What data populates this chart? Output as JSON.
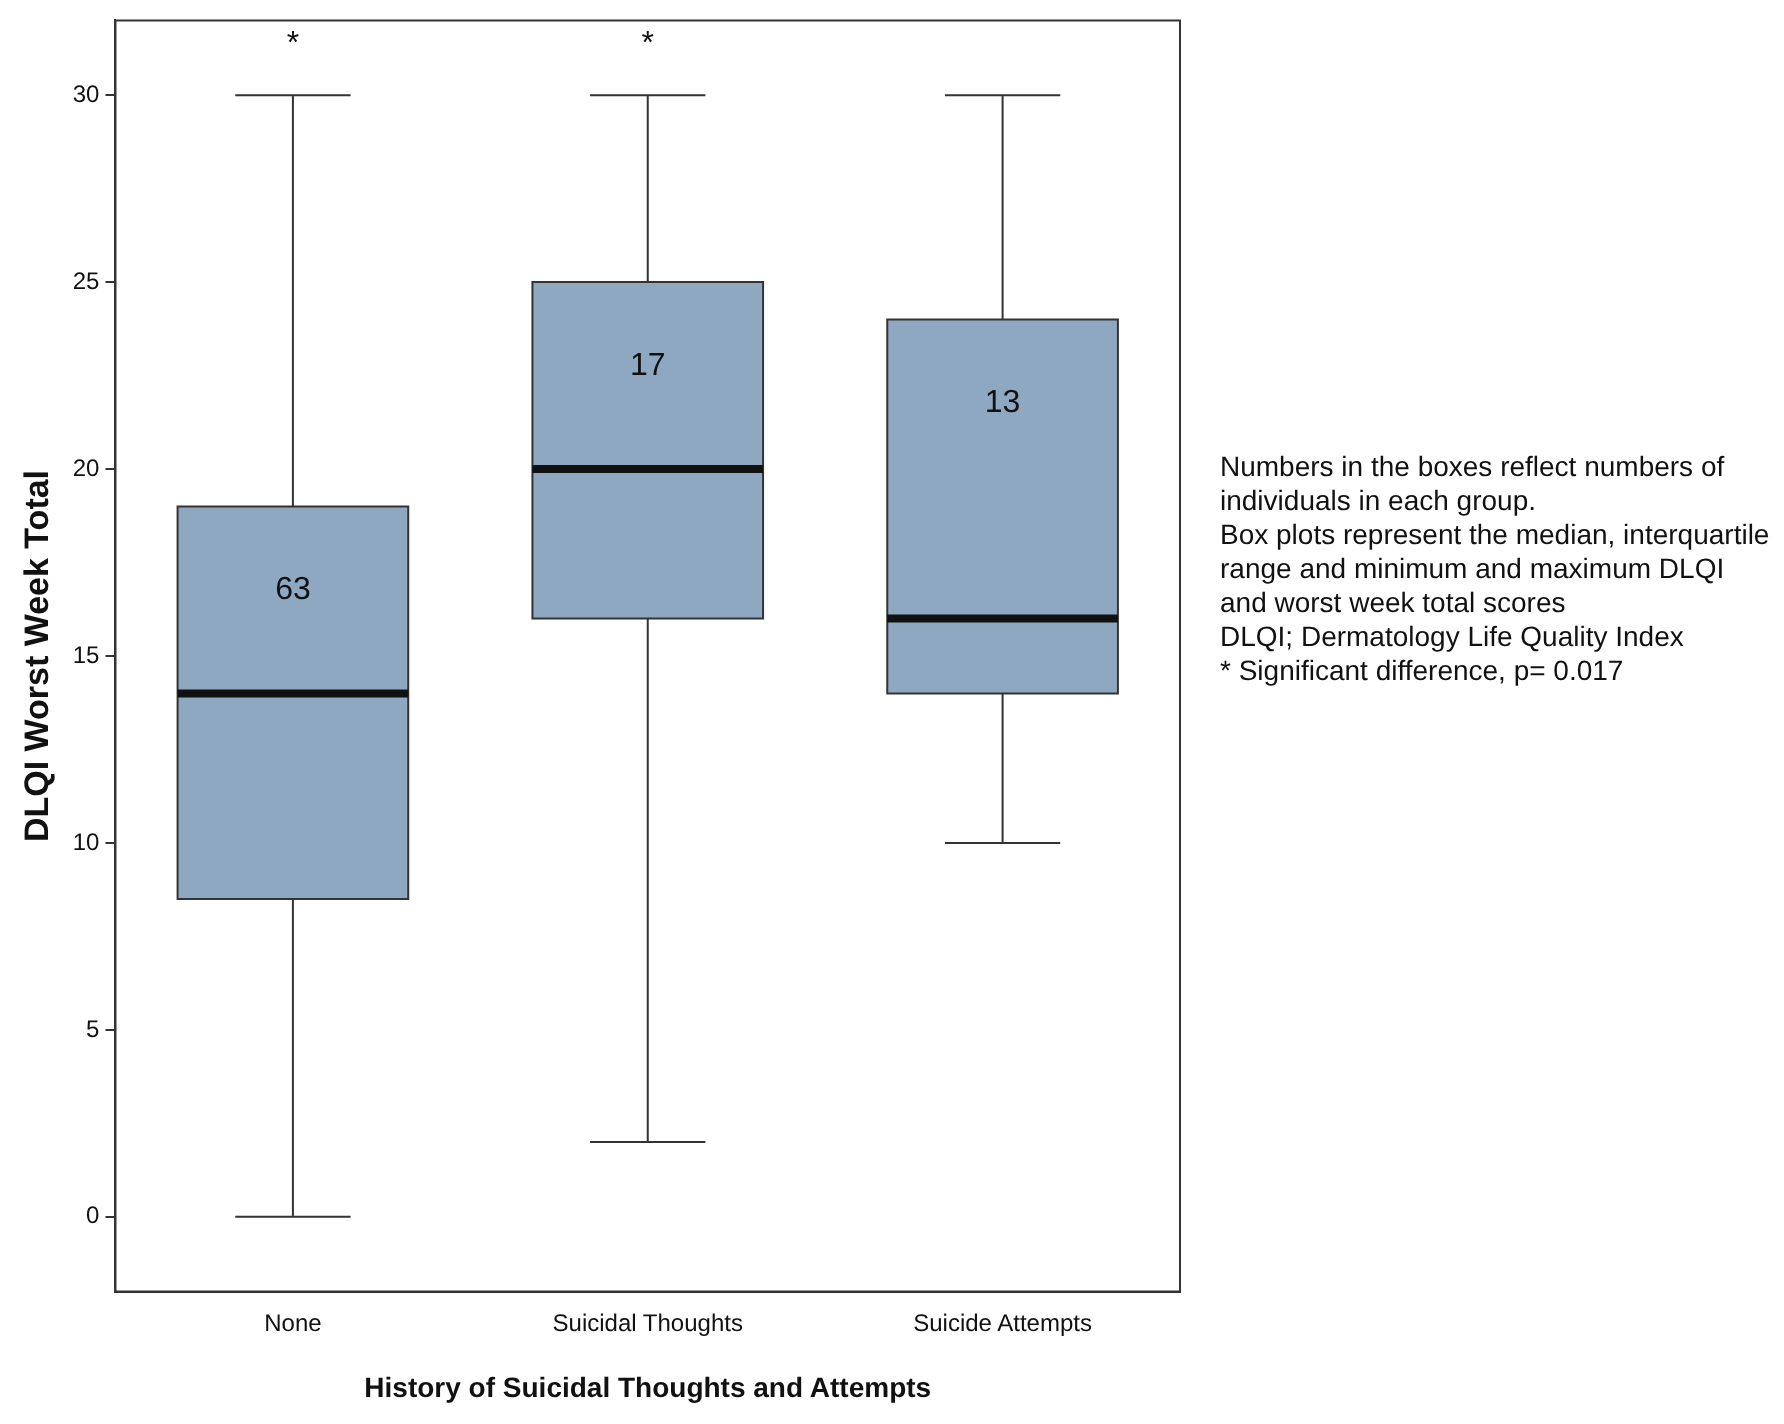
{
  "chart_data": {
    "type": "box",
    "xlabel": "History of Suicidal Thoughts and Attempts",
    "ylabel": "DLQI Worst Week Total",
    "categories": [
      "None",
      "Suicidal Thoughts",
      "Suicide Attempts"
    ],
    "boxes": [
      {
        "low": 0,
        "q1": 8.5,
        "median": 14,
        "q3": 19,
        "high": 30
      },
      {
        "low": 2,
        "q1": 16,
        "median": 20,
        "q3": 25,
        "high": 30
      },
      {
        "low": 10,
        "q1": 14,
        "median": 16,
        "q3": 24,
        "high": 30
      }
    ],
    "color": "#8fa8c2",
    "ylim": [
      -2,
      32
    ],
    "yticks": [
      0,
      5,
      10,
      15,
      20,
      25,
      30
    ],
    "grid": false,
    "legend": false,
    "value_labels": [
      "63",
      "17",
      "13"
    ],
    "annotations": [
      "*",
      "*",
      "Numbers in the boxes reflect numbers of individuals in each group.",
      "Box plots represent the median, interquartile range and minimum and maximum DLQI and worst week total scores",
      "DLQI; Dermatology Life Quality Index",
      "*  Significant difference, p= 0.017"
    ]
  }
}
